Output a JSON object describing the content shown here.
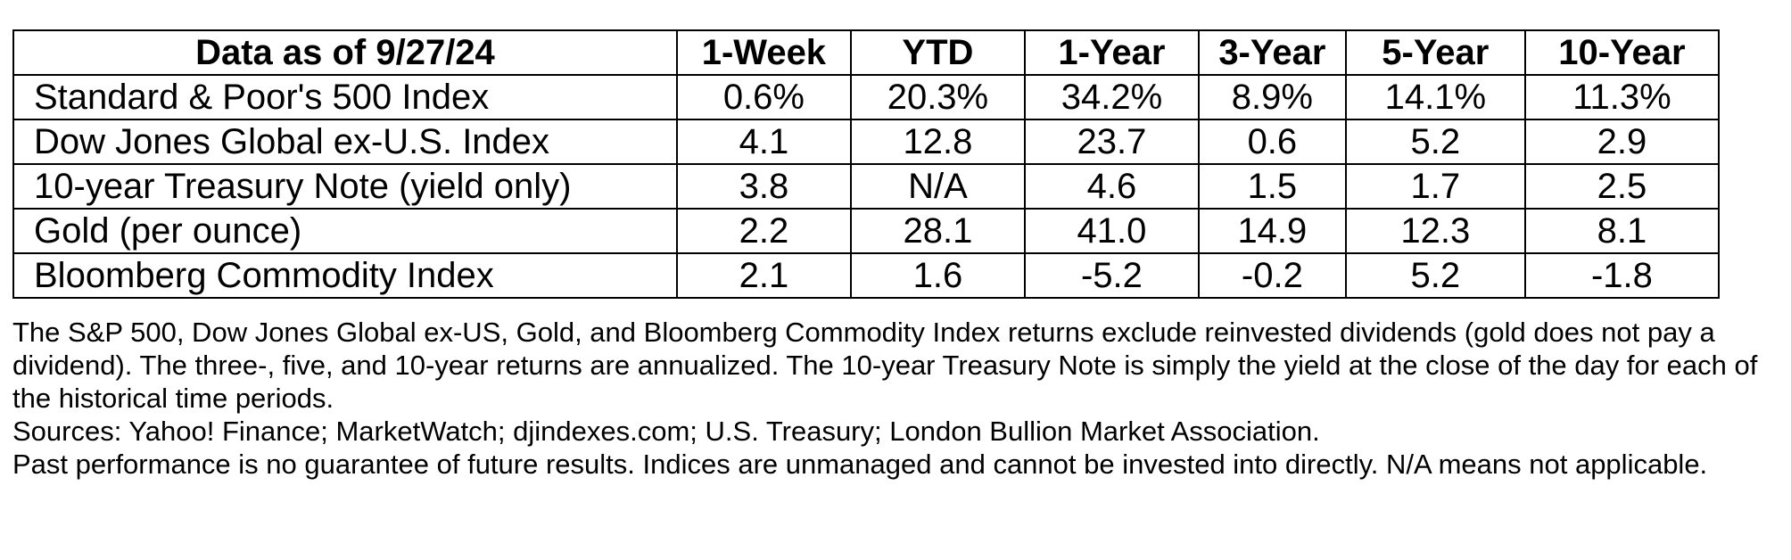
{
  "table": {
    "columns": [
      "Data as of 9/27/24",
      "1-Week",
      "YTD",
      "1-Year",
      "3-Year",
      "5-Year",
      "10-Year"
    ],
    "rows": [
      {
        "label": "Standard & Poor's 500 Index",
        "values": [
          "0.6%",
          "20.3%",
          "34.2%",
          "8.9%",
          "14.1%",
          "11.3%"
        ]
      },
      {
        "label": "Dow Jones Global ex-U.S. Index",
        "values": [
          "4.1",
          "12.8",
          "23.7",
          "0.6",
          "5.2",
          "2.9"
        ]
      },
      {
        "label": "10-year Treasury Note (yield only)",
        "values": [
          "3.8",
          "N/A",
          "4.6",
          "1.5",
          "1.7",
          "2.5"
        ]
      },
      {
        "label": "Gold (per ounce)",
        "values": [
          "2.2",
          "28.1",
          "41.0",
          "14.9",
          "12.3",
          "8.1"
        ]
      },
      {
        "label": "Bloomberg Commodity Index",
        "values": [
          "2.1",
          "1.6",
          "-5.2",
          "-0.2",
          "5.2",
          "-1.8"
        ]
      }
    ]
  },
  "notes": {
    "methodology": "The S&P 500, Dow Jones Global ex-US, Gold, and Bloomberg Commodity Index returns exclude reinvested dividends (gold does not pay a dividend). The three-, five, and 10-year returns are annualized. The 10-year Treasury Note is simply the yield at the close of the day for each of the historical time periods.",
    "sources": "Sources: Yahoo! Finance; MarketWatch; djindexes.com; U.S. Treasury; London Bullion Market Association.",
    "disclaimer": "Past performance is no guarantee of future results. Indices are unmanaged and cannot be invested into directly. N/A means not applicable."
  }
}
